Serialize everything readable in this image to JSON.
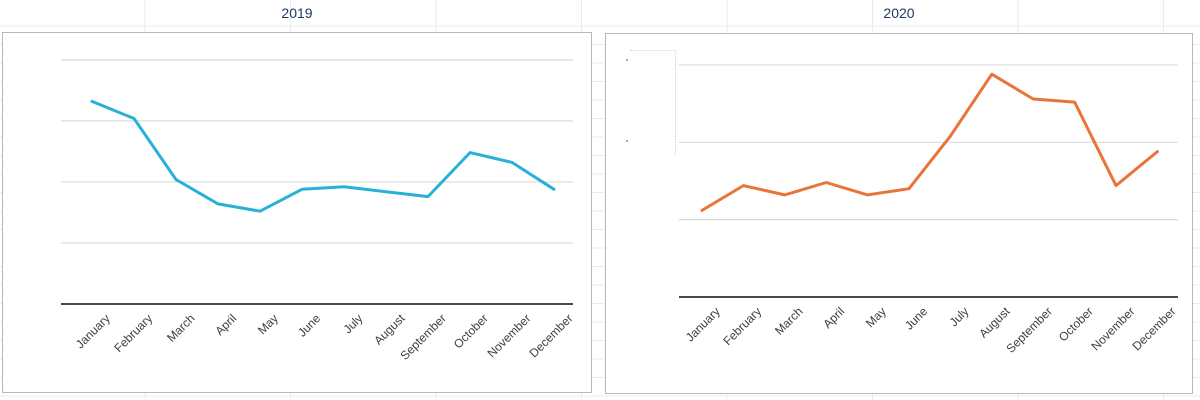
{
  "app": {
    "context": "spreadsheet-embedded-charts"
  },
  "colors": {
    "title_text": "#1f3864",
    "axis_line": "#4a4a4a",
    "gridline": "#d9dbde",
    "label_text": "#3f3f3f",
    "series_2019": "#29b0d6",
    "series_2020": "#e8743a",
    "card_border": "#b3b8bd",
    "sheet_grid": "#e9ebee"
  },
  "chart_data": [
    {
      "type": "line",
      "title": "2019",
      "series_color": "#29b0d6",
      "categories": [
        "January",
        "February",
        "March",
        "April",
        "May",
        "June",
        "July",
        "August",
        "September",
        "October",
        "November",
        "December"
      ],
      "values": [
        83,
        76,
        51,
        41,
        38,
        47,
        48,
        46,
        44,
        62,
        58,
        47
      ],
      "xlabel": "",
      "ylabel": "",
      "ylim": [
        0,
        111
      ],
      "ygrid_values": [
        25,
        50,
        75,
        100
      ],
      "grid": "horizontal-only",
      "legend": "none",
      "x_tick_rotation": -45,
      "y_tick_labels_visible": false
    },
    {
      "type": "line",
      "title": "2020",
      "series_color": "#e8743a",
      "categories": [
        "January",
        "February",
        "March",
        "April",
        "May",
        "June",
        "July",
        "August",
        "September",
        "October",
        "November",
        "December"
      ],
      "values": [
        28,
        36,
        33,
        37,
        33,
        35,
        52,
        72,
        64,
        63,
        36,
        47
      ],
      "xlabel": "",
      "ylabel": "",
      "ylim": [
        0,
        85
      ],
      "ygrid_values": [
        25,
        50,
        75
      ],
      "grid": "horizontal-only",
      "legend": "none",
      "x_tick_rotation": -45,
      "y_tick_labels_visible": false
    }
  ]
}
